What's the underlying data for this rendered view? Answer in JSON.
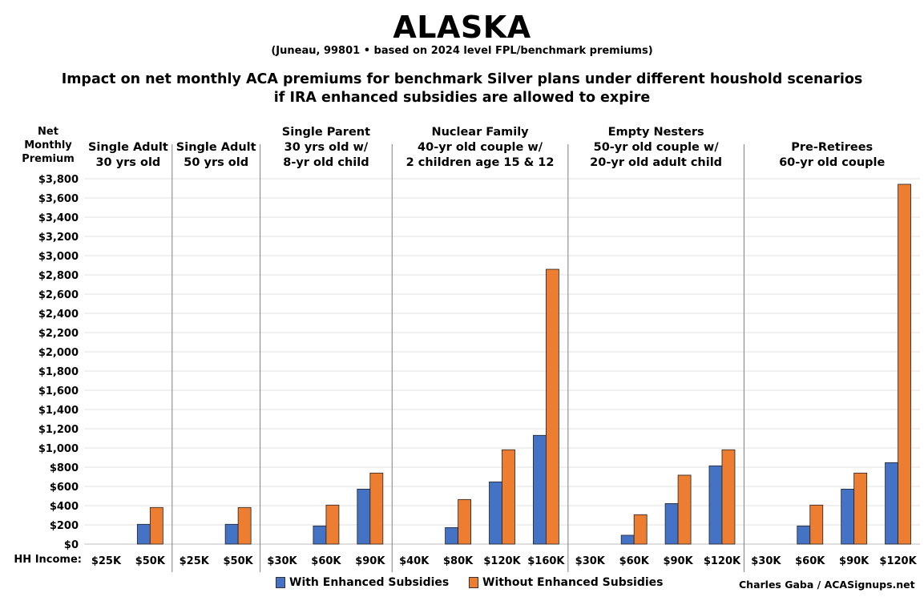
{
  "header": {
    "title": "ALASKA",
    "subtitle": "(Juneau, 99801 • based on 2024 level FPL/benchmark premiums)",
    "description_line1": "Impact on net monthly ACA premiums for benchmark Silver plans under different houshold scenarios",
    "description_line2": "if IRA enhanced subsidies are allowed to expire"
  },
  "credit": "Charles Gaba / ACASignups.net",
  "chart_data": {
    "type": "bar",
    "ylabel": [
      "Net",
      "Monthly",
      "Premium"
    ],
    "xlabel": "HH Income:",
    "ylim": [
      0,
      3800
    ],
    "ytick_step": 200,
    "grid": true,
    "legend_placement": "bottom",
    "groups": [
      {
        "label": [
          "Single Adult",
          "30 yrs old"
        ],
        "categories": [
          "$25K",
          "$50K"
        ]
      },
      {
        "label": [
          "Single Adult",
          "50 yrs old"
        ],
        "categories": [
          "$25K",
          "$50K"
        ]
      },
      {
        "label": [
          "Single Parent",
          "30 yrs old w/",
          "8-yr old child"
        ],
        "categories": [
          "$30K",
          "$60K",
          "$90K"
        ]
      },
      {
        "label": [
          "Nuclear Family",
          "40-yr old couple w/",
          "2 children age 15 & 12"
        ],
        "categories": [
          "$40K",
          "$80K",
          "$120K",
          "$160K"
        ]
      },
      {
        "label": [
          "Empty Nesters",
          "50-yr old couple w/",
          "20-yr old adult child"
        ],
        "categories": [
          "$30K",
          "$60K",
          "$90K",
          "$120K"
        ]
      },
      {
        "label": [
          "Pre-Retirees",
          "60-yr old couple"
        ],
        "categories": [
          "$30K",
          "$60K",
          "$90K",
          "$120K"
        ]
      }
    ],
    "series": [
      {
        "name": "With Enhanced Subsidies",
        "color": "#4472C4",
        "values": [
          0,
          206,
          0,
          206,
          0,
          189,
          572,
          0,
          172,
          647,
          1131,
          0,
          92,
          422,
          814,
          0,
          189,
          572,
          847
        ]
      },
      {
        "name": "Without Enhanced Subsidies",
        "color": "#ED7D31",
        "values": [
          0,
          381,
          0,
          381,
          0,
          406,
          739,
          0,
          464,
          981,
          2858,
          0,
          306,
          717,
          981,
          0,
          406,
          739,
          3742
        ]
      }
    ]
  }
}
